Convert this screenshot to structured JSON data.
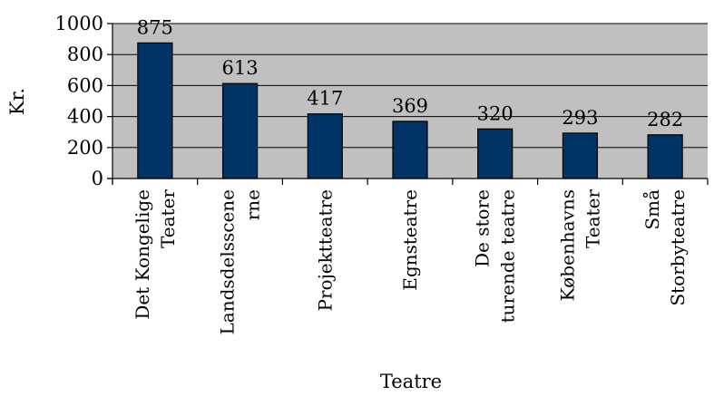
{
  "chart_data": {
    "type": "bar",
    "categories": [
      [
        "Det Kongelige",
        "Teater"
      ],
      [
        "Landsdelsscene",
        "rne"
      ],
      [
        "Projektteatre"
      ],
      [
        "Egnsteatre"
      ],
      [
        "De store",
        "turende teatre"
      ],
      [
        "Københavns",
        "Teater"
      ],
      [
        "Små",
        "Storbyteatre"
      ]
    ],
    "values": [
      875,
      613,
      417,
      369,
      320,
      293,
      282
    ],
    "data_labels": [
      "875",
      "613",
      "417",
      "369",
      "320",
      "293",
      "282"
    ],
    "ylim": [
      0,
      1000
    ],
    "yticks": [
      0,
      200,
      400,
      600,
      800,
      1000
    ],
    "ytick_labels": [
      "0",
      "200",
      "400",
      "600",
      "800",
      "1000"
    ],
    "xlabel": "Teatre",
    "ylabel": "Kr.",
    "grid": true,
    "colors": {
      "bar": "#003366",
      "plot_background": "#c0c0c0",
      "gridline": "#000000"
    }
  }
}
